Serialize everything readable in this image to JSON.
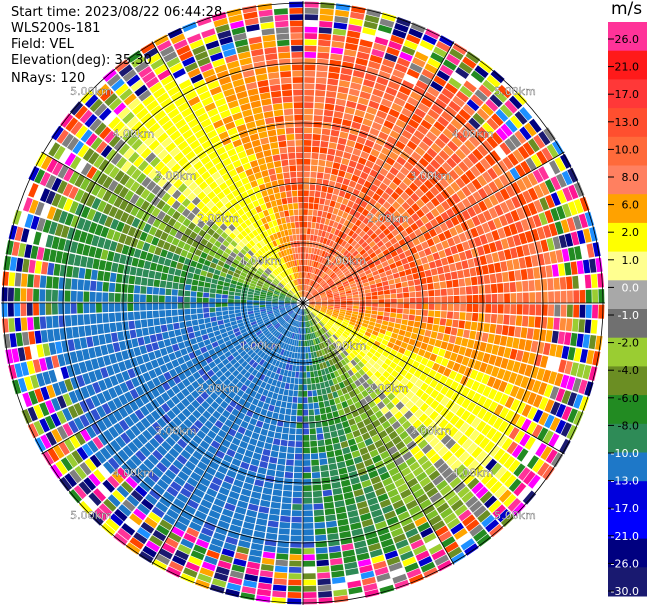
{
  "header": {
    "start_time": "Start time: 2023/08/22 06:44:28",
    "instrument": "WLS200s-181",
    "field": "Field: VEL",
    "elevation": "Elevation(deg): 35.30",
    "nrays": "NRays: 120"
  },
  "range_rings": {
    "labels": [
      "1.00km",
      "2.00km",
      "3.00km",
      "4.00km",
      "5.00km"
    ]
  },
  "colorbar": {
    "unit": "m/s",
    "ticks": [
      "26.0",
      "21.0",
      "17.0",
      "13.0",
      "10.0",
      "8.0",
      "6.0",
      "2.0",
      "1.0",
      "0.0",
      "-1.0",
      "-2.0",
      "-4.0",
      "-6.0",
      "-8.0",
      "-10.0",
      "-13.0",
      "-17.0",
      "-21.0",
      "-26.0",
      "-30.0"
    ],
    "colors": [
      "#ff3399",
      "#ff1a1a",
      "#ff3838",
      "#ff4f2f",
      "#ff6a3a",
      "#ff8060",
      "#ffa200",
      "#ffff00",
      "#ffff90",
      "#a8a8a8",
      "#707070",
      "#9acd32",
      "#6b8e23",
      "#228b22",
      "#2e8b57",
      "#1e78c8",
      "#0000dd",
      "#0000ff",
      "#000080",
      "#191970"
    ]
  }
}
